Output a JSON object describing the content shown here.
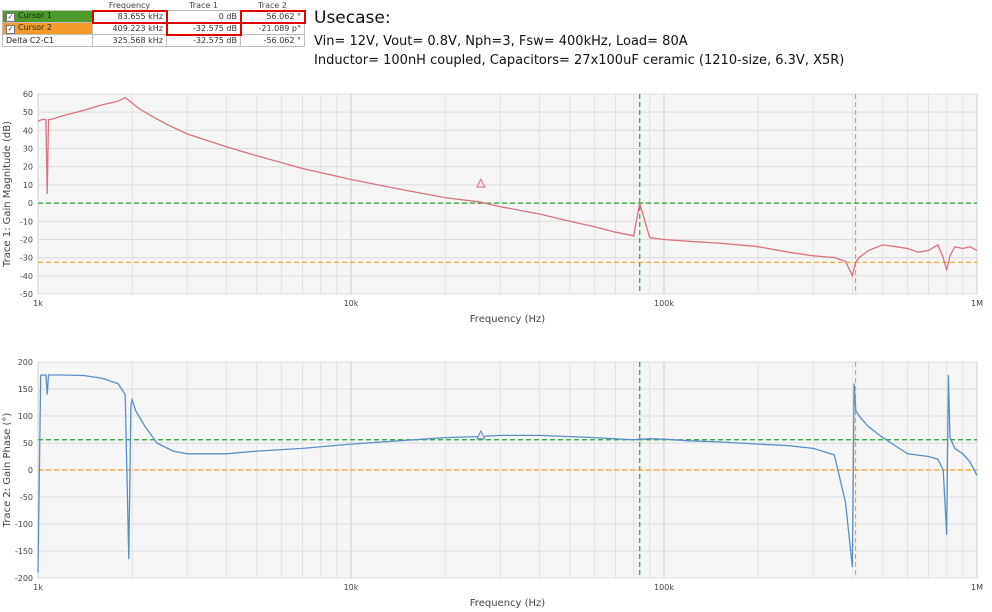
{
  "cursor_table": {
    "headers": [
      "",
      "Frequency",
      "Trace 1",
      "Trace 2"
    ],
    "rows": [
      {
        "name": "Cursor 1",
        "checked": true,
        "frequency": "83.655 kHz",
        "trace1": "0 dB",
        "trace2": "56.062 °"
      },
      {
        "name": "Cursor 2",
        "checked": true,
        "frequency": "409.223 kHz",
        "trace1": "-32.575 dB",
        "trace2": "-21.089 p°"
      },
      {
        "name": "Delta C2-C1",
        "checked": false,
        "frequency": "325.568 kHz",
        "trace1": "-32.575 dB",
        "trace2": "-56.062 °"
      }
    ]
  },
  "usecase": {
    "title": "Usecase:",
    "line1": "Vin= 12V, Vout= 0.8V, Nph=3, Fsw= 400kHz, Load= 80A",
    "line2": "Inductor= 100nH coupled, Capacitors= 27x100uF ceramic (1210-size, 6.3V, X5R)"
  },
  "colors": {
    "magnitude": "#d9737f",
    "phase": "#5b8fc4",
    "cursor1": "#2e9e3a",
    "cursor2": "#f0a030",
    "highlight": "#e00000"
  },
  "chart_data": [
    {
      "type": "line",
      "xscale": "log",
      "xlim": [
        1000,
        1000000
      ],
      "ylim": [
        -50,
        60
      ],
      "xlabel": "Frequency (Hz)",
      "ylabel": "Trace 1: Gain Magnitude (dB)",
      "xticks": [
        {
          "v": 1000,
          "label": "1k"
        },
        {
          "v": 10000,
          "label": "10k"
        },
        {
          "v": 100000,
          "label": "100k"
        },
        {
          "v": 1000000,
          "label": "1M"
        }
      ],
      "yticks": [
        60,
        50,
        40,
        30,
        20,
        10,
        0,
        -10,
        -20,
        -30,
        -40,
        -50
      ],
      "series": [
        {
          "x": [
            1000,
            1030,
            1060,
            1070,
            1080,
            1100,
            1200,
            1400,
            1600,
            1800,
            1900,
            2000,
            2100,
            2300,
            2600,
            3000,
            4000,
            5000,
            7000,
            10000,
            15000,
            20000,
            26000,
            30000,
            40000,
            50000,
            60000,
            70000,
            80000,
            83655,
            90000,
            100000,
            120000,
            150000,
            200000,
            250000,
            300000,
            350000,
            380000,
            400000,
            409000,
            420000,
            450000,
            500000,
            550000,
            600000,
            650000,
            700000,
            750000,
            780000,
            800000,
            820000,
            850000,
            900000,
            950000,
            1000000
          ],
          "y": [
            45,
            46,
            46,
            5,
            46,
            46,
            48,
            51,
            54,
            56,
            58,
            55,
            52,
            48,
            43,
            38,
            31,
            26,
            19,
            13,
            7,
            3,
            0.5,
            -2,
            -6,
            -10,
            -13,
            -16,
            -18,
            0,
            -19,
            -20,
            -21,
            -22,
            -24,
            -27,
            -29,
            -30,
            -32,
            -40,
            -32.6,
            -30,
            -26,
            -23,
            -24,
            -25,
            -27,
            -26,
            -23,
            -30,
            -37,
            -29,
            -24,
            -25,
            -24,
            -26
          ]
        }
      ],
      "reference_lines": [
        {
          "axis": "x",
          "value": 83655,
          "color": "cursor1"
        },
        {
          "axis": "x",
          "value": 409223,
          "color": "cursor2"
        },
        {
          "axis": "y",
          "value": 0,
          "color": "cursor1"
        },
        {
          "axis": "y",
          "value": -32.575,
          "color": "cursor2"
        }
      ],
      "marker": {
        "x": 26000,
        "y": 11
      }
    },
    {
      "type": "line",
      "xscale": "log",
      "xlim": [
        1000,
        1000000
      ],
      "ylim": [
        -200,
        200
      ],
      "xlabel": "Frequency (Hz)",
      "ylabel": "Trace 2: Gain Phase (°)",
      "xticks": [
        {
          "v": 1000,
          "label": "1k"
        },
        {
          "v": 10000,
          "label": "10k"
        },
        {
          "v": 100000,
          "label": "100k"
        },
        {
          "v": 1000000,
          "label": "1M"
        }
      ],
      "yticks": [
        200,
        150,
        100,
        50,
        0,
        -50,
        -100,
        -150,
        -200
      ],
      "series": [
        {
          "x": [
            1000,
            1020,
            1030,
            1060,
            1070,
            1080,
            1200,
            1400,
            1600,
            1800,
            1900,
            1950,
            1980,
            2000,
            2050,
            2200,
            2400,
            2700,
            3000,
            4000,
            5000,
            7000,
            10000,
            15000,
            20000,
            26000,
            30000,
            40000,
            60000,
            80000,
            90000,
            100000,
            120000,
            150000,
            200000,
            250000,
            300000,
            350000,
            380000,
            400000,
            405000,
            410000,
            420000,
            450000,
            500000,
            600000,
            700000,
            750000,
            780000,
            800000,
            810000,
            820000,
            850000,
            900000,
            950000,
            1000000
          ],
          "y": [
            -190,
            175,
            176,
            176,
            140,
            176,
            176,
            175,
            170,
            160,
            140,
            -165,
            120,
            130,
            110,
            80,
            50,
            35,
            30,
            30,
            35,
            40,
            48,
            55,
            60,
            62,
            64,
            64,
            60,
            56,
            58,
            57,
            54,
            52,
            48,
            45,
            40,
            28,
            -60,
            -180,
            160,
            110,
            100,
            80,
            60,
            30,
            25,
            20,
            0,
            -120,
            176,
            60,
            40,
            30,
            15,
            -10
          ]
        }
      ],
      "reference_lines": [
        {
          "axis": "x",
          "value": 83655,
          "color": "cursor1"
        },
        {
          "axis": "x",
          "value": 409223,
          "color": "cursor2"
        },
        {
          "axis": "y",
          "value": 56.062,
          "color": "cursor1"
        },
        {
          "axis": "y",
          "value": 0,
          "color": "cursor2"
        }
      ],
      "marker": {
        "x": 26000,
        "y": 65
      }
    }
  ]
}
